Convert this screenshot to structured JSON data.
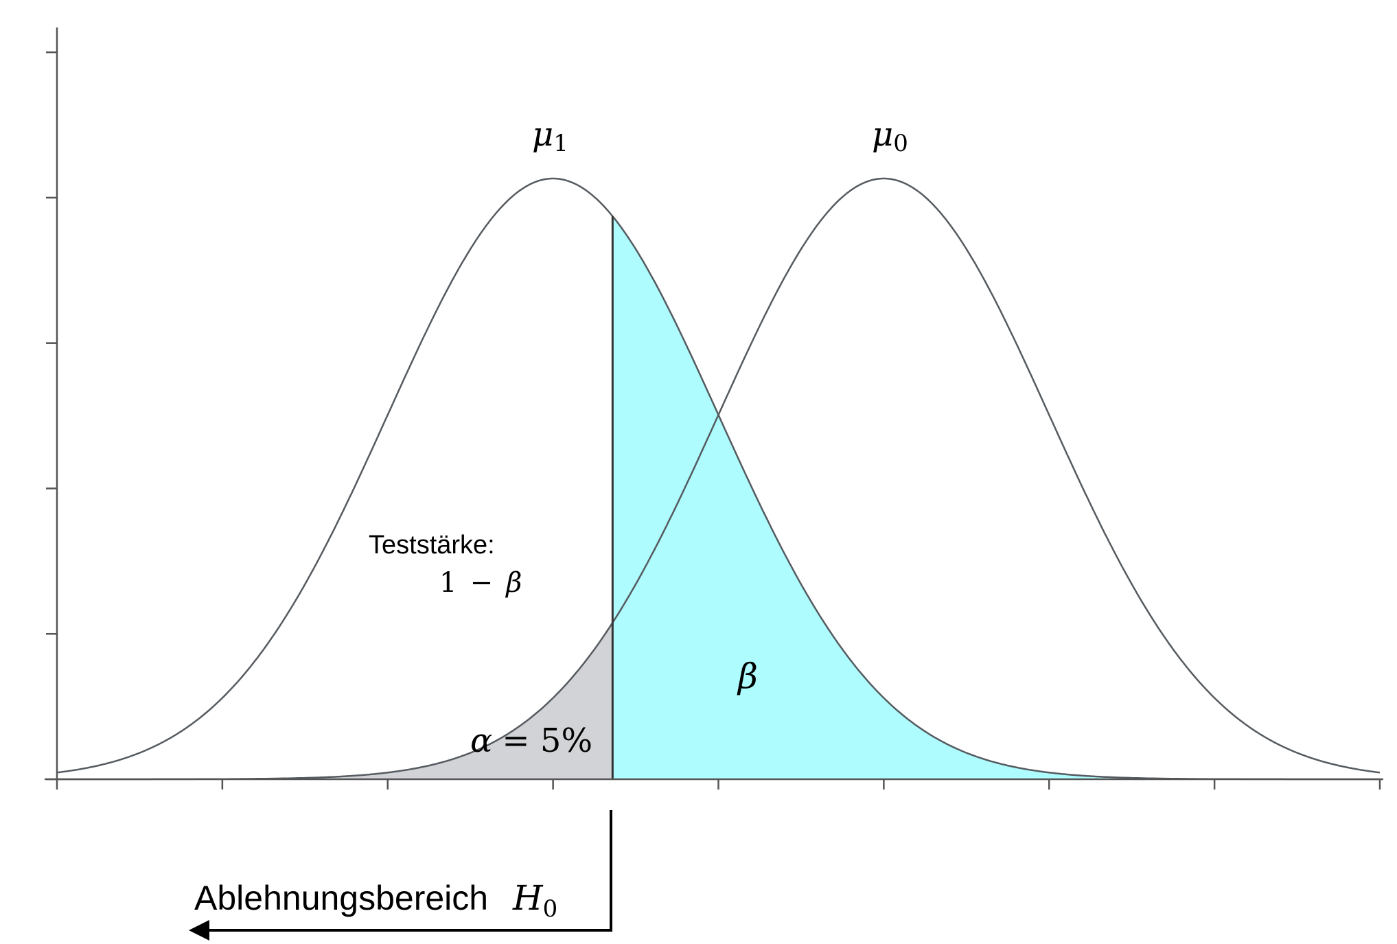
{
  "chart_data": {
    "type": "area",
    "curves": [
      {
        "mean_label": "μ",
        "mean_sub": "1",
        "mean": 0
      },
      {
        "mean_label": "μ",
        "mean_sub": "0",
        "mean": 2
      }
    ],
    "x_range": [
      -3,
      5
    ],
    "critical_value": 0.36,
    "fills": {
      "alpha_color": "#d2d3d6",
      "beta_color": "#aefcfd"
    },
    "annotations": {
      "power_label": "Teststärke:",
      "power_formula_num": "1",
      "power_formula_op": "−",
      "power_formula_sym": "β",
      "beta": "β",
      "alpha_sym": "α",
      "alpha_rest": "= 5%",
      "rejection_text": "Ablehnungsbereich",
      "rejection_sym": "H",
      "rejection_sub": "0"
    },
    "x_ticks": 9,
    "y_ticks": 6
  }
}
